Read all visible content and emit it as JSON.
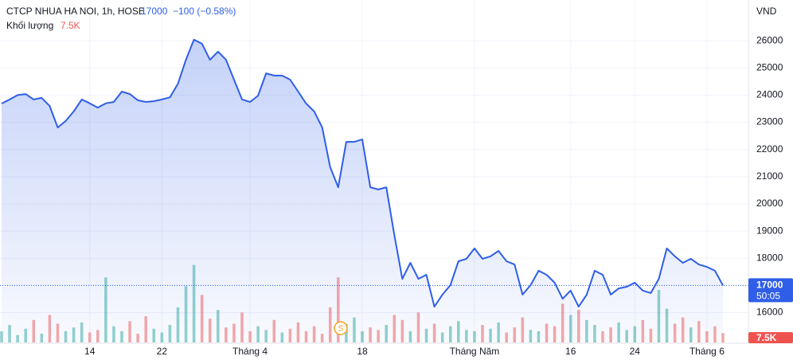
{
  "chart_data": {
    "type": "area",
    "title": "CTCP NHUA HA NOI, 1h, HOSE",
    "change_label": "−100 (−0.58%)",
    "currency": "VND",
    "countdown": "50:05",
    "categories": [
      null,
      null,
      null,
      null,
      null,
      null,
      null,
      null,
      null,
      null,
      null,
      "14",
      null,
      null,
      null,
      null,
      null,
      null,
      null,
      null,
      "22",
      null,
      null,
      null,
      null,
      null,
      null,
      null,
      null,
      null,
      null,
      "Tháng 4",
      null,
      null,
      null,
      null,
      null,
      null,
      null,
      null,
      null,
      null,
      null,
      null,
      null,
      "18",
      null,
      null,
      null,
      null,
      null,
      null,
      null,
      null,
      null,
      null,
      null,
      null,
      null,
      "Tháng Năm",
      null,
      null,
      null,
      null,
      null,
      null,
      null,
      null,
      null,
      null,
      null,
      "16",
      null,
      null,
      null,
      null,
      null,
      null,
      null,
      "24",
      null,
      null,
      null,
      null,
      null,
      null,
      null,
      null,
      "Tháng 6",
      null,
      null
    ],
    "series": [
      {
        "name": "CTCP NHUA HA NOI",
        "color": "#2f5ee8",
        "values": [
          23690,
          23840,
          24000,
          24040,
          23840,
          23900,
          23600,
          22810,
          23050,
          23400,
          23840,
          23700,
          23540,
          23700,
          23750,
          24130,
          24040,
          23810,
          23750,
          23780,
          23840,
          23920,
          24420,
          25300,
          26040,
          25890,
          25300,
          25600,
          25300,
          24570,
          23840,
          23750,
          23980,
          24800,
          24720,
          24720,
          24570,
          24130,
          23690,
          23400,
          22810,
          21350,
          20610,
          22280,
          22280,
          22370,
          20610,
          20530,
          20610,
          18850,
          17240,
          17830,
          17240,
          17390,
          16220,
          16660,
          17010,
          17890,
          17980,
          18360,
          17980,
          18070,
          18270,
          17890,
          17770,
          16660,
          17010,
          17540,
          17390,
          17100,
          16510,
          16810,
          16220,
          16660,
          17540,
          17390,
          16660,
          16890,
          16950,
          17100,
          16810,
          16720,
          17240,
          18360,
          18070,
          17830,
          17980,
          17770,
          17680,
          17540,
          17000
        ]
      },
      {
        "name": "Khối lượng",
        "axis": "volume",
        "up_color": "#26a69a",
        "down_color": "#ef5350",
        "values": [
          9000,
          14000,
          6000,
          11000,
          18000,
          7000,
          22000,
          15000,
          9000,
          12000,
          16000,
          8000,
          10000,
          52000,
          13000,
          9000,
          17000,
          7000,
          21000,
          11000,
          8000,
          14000,
          28000,
          45000,
          62000,
          38000,
          19000,
          26000,
          12000,
          15000,
          24000,
          9000,
          13000,
          10000,
          18000,
          8000,
          11000,
          16000,
          9000,
          13000,
          7000,
          28000,
          52000,
          15000,
          20000,
          9000,
          12000,
          10000,
          14000,
          22000,
          18000,
          9000,
          24000,
          11000,
          15000,
          8000,
          13000,
          17000,
          10000,
          9000,
          14000,
          11000,
          16000,
          8000,
          12000,
          20000,
          10000,
          9000,
          15000,
          13000,
          31000,
          22000,
          26000,
          18000,
          14000,
          9000,
          12000,
          16000,
          10000,
          13000,
          18000,
          11000,
          42000,
          27000,
          15000,
          20000,
          12000,
          17000,
          9000,
          13000,
          7500
        ],
        "value_labels": [
          null,
          null,
          null,
          null,
          null,
          null,
          null,
          null,
          null,
          null,
          null,
          null,
          null,
          null,
          null,
          null,
          null,
          null,
          null,
          null,
          null,
          null,
          null,
          null,
          null,
          null,
          null,
          null,
          null,
          null,
          null,
          null,
          null,
          null,
          null,
          null,
          null,
          null,
          null,
          null,
          null,
          null,
          null,
          null,
          null,
          null,
          null,
          null,
          null,
          null,
          null,
          null,
          null,
          null,
          null,
          null,
          null,
          null,
          null,
          null,
          null,
          null,
          null,
          null,
          null,
          null,
          null,
          null,
          null,
          null,
          null,
          null,
          null,
          null,
          null,
          null,
          null,
          null,
          null,
          null,
          null,
          null,
          null,
          null,
          null,
          null,
          null,
          null,
          null,
          null,
          "7.5K"
        ]
      }
    ],
    "ylim": [
      14900,
      27500
    ],
    "yticks": [
      16000,
      17000,
      18000,
      19000,
      20000,
      21000,
      22000,
      23000,
      24000,
      25000,
      26000
    ],
    "volume_ylim": [
      0,
      70000
    ],
    "grid": true
  }
}
